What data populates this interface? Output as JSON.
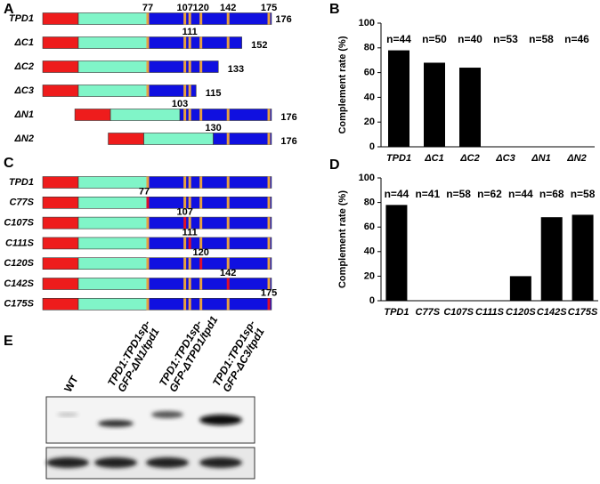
{
  "panel_labels": {
    "a": "A",
    "b": "B",
    "c": "C",
    "d": "D",
    "e": "E"
  },
  "panel_a": {
    "constructs": [
      {
        "name": "TPD1",
        "start": 77,
        "sites": [
          107,
          120,
          142,
          175
        ],
        "end": 176
      },
      {
        "name": "ΔC1",
        "sites": [
          111
        ],
        "end": 152
      },
      {
        "name": "ΔC2",
        "sites": [],
        "end": 133
      },
      {
        "name": "ΔC3",
        "sites": [],
        "end": 115
      },
      {
        "name": "ΔN1",
        "start": 103,
        "sites": [],
        "end": 176
      },
      {
        "name": "ΔN2",
        "start": 130,
        "sites": [],
        "end": 176
      }
    ]
  },
  "panel_c": {
    "rows": [
      {
        "name": "TPD1"
      },
      {
        "name": "C77S",
        "site": 77
      },
      {
        "name": "C107S",
        "site": 107
      },
      {
        "name": "C111S",
        "site": 111
      },
      {
        "name": "C120S",
        "site": 120
      },
      {
        "name": "C142S",
        "site": 142
      },
      {
        "name": "C175S",
        "site": 175
      }
    ]
  },
  "chart_data": [
    {
      "type": "bar",
      "ylabel": "Complement rate (%)",
      "categories": [
        "TPD1",
        "ΔC1",
        "ΔC2",
        "ΔC3",
        "ΔN1",
        "ΔN2"
      ],
      "values": [
        78,
        68,
        64,
        0,
        0,
        0
      ],
      "annotations": [
        "n=44",
        "n=50",
        "n=40",
        "n=53",
        "n=58",
        "n=46"
      ],
      "color": "#000000",
      "ylim": [
        0,
        100
      ],
      "yticks": [
        0,
        20,
        40,
        60,
        80,
        100
      ]
    },
    {
      "type": "bar",
      "ylabel": "Complement rate (%)",
      "categories": [
        "TPD1",
        "C77S",
        "C107S",
        "C111S",
        "C120S",
        "C142S",
        "C175S"
      ],
      "values": [
        78,
        0,
        0,
        0,
        20,
        68,
        70
      ],
      "annotations": [
        "n=44",
        "n=41",
        "n=58",
        "n=62",
        "n=44",
        "n=68",
        "n=58"
      ],
      "color": "#000000",
      "ylim": [
        0,
        100
      ],
      "yticks": [
        0,
        20,
        40,
        60,
        80,
        100
      ]
    }
  ],
  "panel_e": {
    "lanes": [
      [
        "WT"
      ],
      [
        "TPD1:TPD1sp-",
        "GFP-ΔN1/tpd1"
      ],
      [
        "TPD1:TPD1sp-",
        "GFP-ΔTPD1/tpd1"
      ],
      [
        "TPD1:TPD1sp-",
        "GFP-ΔC3/tpd1"
      ]
    ]
  }
}
